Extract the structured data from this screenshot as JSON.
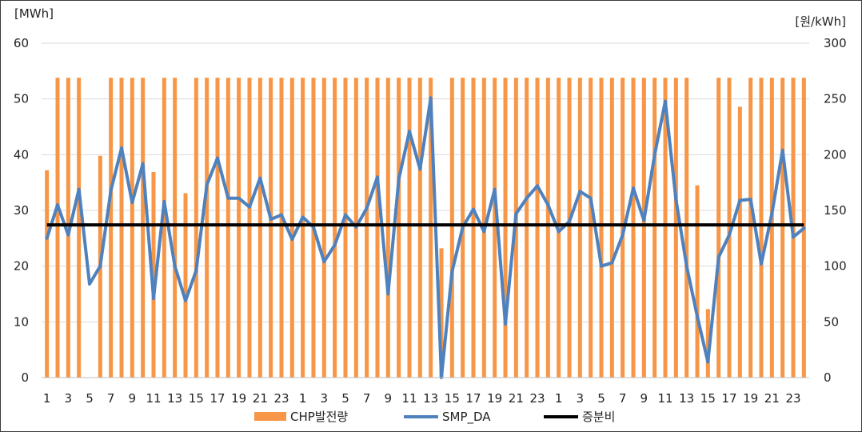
{
  "chart_data": {
    "type": "bar",
    "y_left_unit": "[MWh]",
    "y_right_unit": "[원/kWh]",
    "ylim_left": [
      0,
      60
    ],
    "yticks_left": [
      "0",
      "10",
      "20",
      "30",
      "40",
      "50",
      "60"
    ],
    "ylim_right": [
      0,
      300
    ],
    "yticks_right": [
      "0",
      "50",
      "100",
      "150",
      "200",
      "250",
      "300"
    ],
    "grid": true,
    "legend_position": "bottom",
    "categories": [
      "1",
      "2",
      "3",
      "4",
      "5",
      "6",
      "7",
      "8",
      "9",
      "10",
      "11",
      "12",
      "13",
      "14",
      "15",
      "16",
      "17",
      "18",
      "19",
      "20",
      "21",
      "22",
      "23",
      "24",
      "1",
      "2",
      "3",
      "4",
      "5",
      "6",
      "7",
      "8",
      "9",
      "10",
      "11",
      "12",
      "13",
      "14",
      "15",
      "16",
      "17",
      "18",
      "19",
      "20",
      "21",
      "22",
      "23",
      "24",
      "1",
      "2",
      "3",
      "4",
      "5",
      "6",
      "7",
      "8",
      "9",
      "10",
      "11",
      "12",
      "13",
      "14",
      "15",
      "16",
      "17",
      "18",
      "19",
      "20",
      "21",
      "22",
      "23",
      "24"
    ],
    "x_tick_labels": [
      "1",
      "",
      "3",
      "",
      "5",
      "",
      "7",
      "",
      "9",
      "",
      "11",
      "",
      "13",
      "",
      "15",
      "",
      "17",
      "",
      "19",
      "",
      "21",
      "",
      "23",
      "",
      "1",
      "",
      "3",
      "",
      "5",
      "",
      "7",
      "",
      "9",
      "",
      "11",
      "",
      "13",
      "",
      "15",
      "",
      "17",
      "",
      "19",
      "",
      "21",
      "",
      "23",
      "",
      "1",
      "",
      "3",
      "",
      "5",
      "",
      "7",
      "",
      "9",
      "",
      "11",
      "",
      "13",
      "",
      "15",
      "",
      "17",
      "",
      "19",
      "",
      "21",
      "",
      "23",
      ""
    ],
    "series": [
      {
        "name": "CHP발전량",
        "kind": "bar",
        "axis": "left",
        "color": "#F79646",
        "values": [
          37.2,
          53.8,
          53.8,
          53.8,
          0,
          39.8,
          53.8,
          53.8,
          53.8,
          53.8,
          36.9,
          53.8,
          53.8,
          33.1,
          53.8,
          53.8,
          53.8,
          53.8,
          53.8,
          53.8,
          53.8,
          53.8,
          53.8,
          53.8,
          53.8,
          53.8,
          53.8,
          53.8,
          53.8,
          53.8,
          53.8,
          53.8,
          53.8,
          53.8,
          53.8,
          53.8,
          53.8,
          23.2,
          53.8,
          53.8,
          53.8,
          53.8,
          53.8,
          53.8,
          53.8,
          53.8,
          53.8,
          53.8,
          53.8,
          53.8,
          53.8,
          53.8,
          53.8,
          53.8,
          53.8,
          53.8,
          53.8,
          53.8,
          53.8,
          53.8,
          53.8,
          34.5,
          12.3,
          53.8,
          53.8,
          48.6,
          53.8,
          53.8,
          53.8,
          53.8,
          53.8,
          53.8
        ]
      },
      {
        "name": "SMP_DA",
        "kind": "line",
        "axis": "right",
        "color": "#4F81BD",
        "values": [
          125,
          155,
          128,
          169,
          84,
          100,
          168,
          206,
          157,
          192,
          71,
          158,
          100,
          69,
          96,
          173,
          197,
          161,
          161,
          153,
          179,
          142,
          146,
          124,
          144,
          135,
          104,
          119,
          146,
          135,
          152,
          180,
          75,
          178,
          221,
          187,
          251,
          0,
          95,
          135,
          151,
          131,
          169,
          48,
          147,
          161,
          172,
          155,
          131,
          140,
          167,
          161,
          100,
          103,
          128,
          170,
          141,
          200,
          248,
          160,
          100,
          55,
          14,
          108,
          128,
          159,
          160,
          102,
          147,
          204,
          126,
          134
        ]
      },
      {
        "name": "증분비",
        "kind": "line",
        "axis": "right",
        "color": "#000000",
        "values": [
          137,
          137,
          137,
          137,
          137,
          137,
          137,
          137,
          137,
          137,
          137,
          137,
          137,
          137,
          137,
          137,
          137,
          137,
          137,
          137,
          137,
          137,
          137,
          137,
          137,
          137,
          137,
          137,
          137,
          137,
          137,
          137,
          137,
          137,
          137,
          137,
          137,
          137,
          137,
          137,
          137,
          137,
          137,
          137,
          137,
          137,
          137,
          137,
          137,
          137,
          137,
          137,
          137,
          137,
          137,
          137,
          137,
          137,
          137,
          137,
          137,
          137,
          137,
          137,
          137,
          137,
          137,
          137,
          137,
          137,
          137,
          137
        ]
      }
    ]
  }
}
